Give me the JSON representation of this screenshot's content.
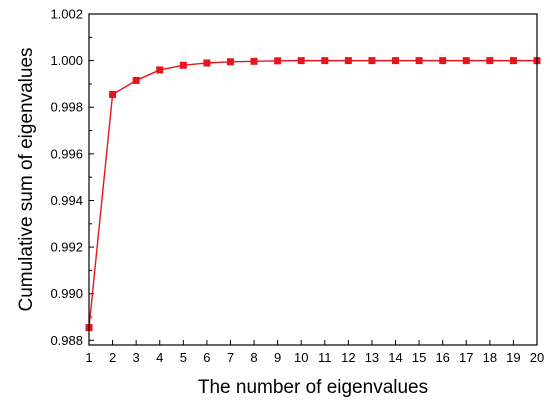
{
  "chart_data": {
    "type": "line",
    "title": "",
    "xlabel": "The number of eigenvalues",
    "ylabel": "Cumulative sum of eigenvalues",
    "xlim": [
      1,
      20
    ],
    "ylim": [
      0.9878,
      1.002
    ],
    "x_ticks": [
      1,
      2,
      3,
      4,
      5,
      6,
      7,
      8,
      9,
      10,
      11,
      12,
      13,
      14,
      15,
      16,
      17,
      18,
      19,
      20
    ],
    "y_ticks": [
      "0.988",
      "0.990",
      "0.992",
      "0.994",
      "0.996",
      "0.998",
      "1.000",
      "1.002"
    ],
    "grid": false,
    "legend": "none",
    "series": [
      {
        "color": "#e8141c",
        "marker": "square",
        "x": [
          1,
          2,
          3,
          4,
          5,
          6,
          7,
          8,
          9,
          10,
          11,
          12,
          13,
          14,
          15,
          16,
          17,
          18,
          19,
          20
        ],
        "y": [
          0.98855,
          0.99855,
          0.99915,
          0.9996,
          0.9998,
          0.9999,
          0.99995,
          0.99997,
          0.99999,
          1.0,
          1.0,
          1.0,
          1.0,
          1.0,
          1.0,
          1.0,
          1.0,
          1.0,
          1.0,
          1.0
        ]
      }
    ]
  }
}
